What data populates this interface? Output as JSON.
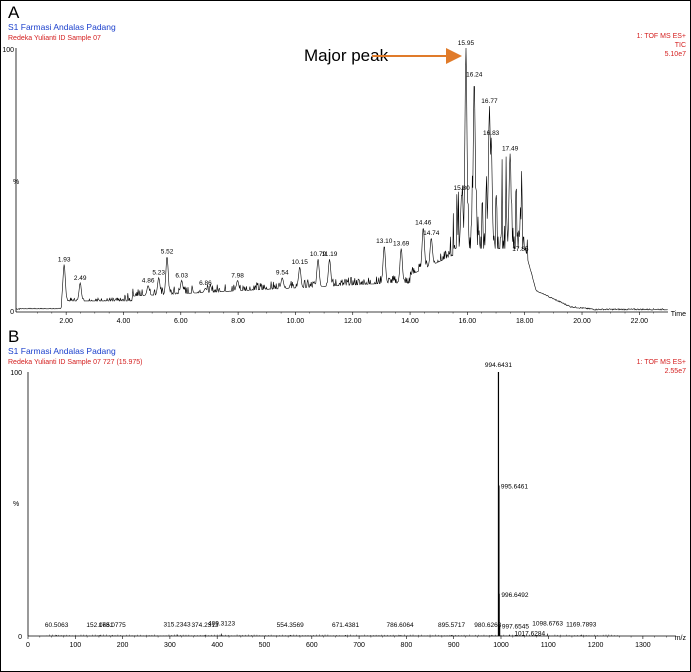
{
  "figure": {
    "panel_a_label": "A",
    "panel_b_label": "B",
    "annotation": "Major peak"
  },
  "chart_data": [
    {
      "type": "line",
      "panel": "A",
      "header_left_1": "S1 Farmasi Andalas Padang",
      "header_left_2": "Redeka Yulianti ID Sample 07",
      "header_right_1": "1: TOF MS ES+",
      "header_right_2": "TIC",
      "header_right_3": "5.10e7",
      "y_label": "%",
      "x_label": "Time",
      "y_ticks": [
        "0",
        "100"
      ],
      "x_ticks": [
        "2.00",
        "4.00",
        "6.00",
        "8.00",
        "10.00",
        "12.00",
        "14.00",
        "16.00",
        "18.00",
        "20.00",
        "22.00"
      ],
      "xlim": [
        0.25,
        23.0
      ],
      "ylim": [
        0,
        100
      ],
      "peaks": [
        {
          "x": 1.93,
          "y": 18,
          "label": "1.93"
        },
        {
          "x": 2.49,
          "y": 11,
          "label": "2.49"
        },
        {
          "x": 4.86,
          "y": 10,
          "label": "4.86"
        },
        {
          "x": 5.23,
          "y": 13,
          "label": "5.23"
        },
        {
          "x": 5.52,
          "y": 21,
          "label": "5.52"
        },
        {
          "x": 6.03,
          "y": 12,
          "label": "6.03"
        },
        {
          "x": 6.86,
          "y": 9,
          "label": "6.86"
        },
        {
          "x": 7.98,
          "y": 12,
          "label": "7.98"
        },
        {
          "x": 9.54,
          "y": 13,
          "label": "9.54"
        },
        {
          "x": 10.15,
          "y": 17,
          "label": "10.15"
        },
        {
          "x": 10.79,
          "y": 20,
          "label": "10.79"
        },
        {
          "x": 11.19,
          "y": 20,
          "label": "11.19"
        },
        {
          "x": 13.1,
          "y": 25,
          "label": "13.10"
        },
        {
          "x": 13.69,
          "y": 24,
          "label": "13.69"
        },
        {
          "x": 14.46,
          "y": 32,
          "label": "14.46"
        },
        {
          "x": 14.74,
          "y": 28,
          "label": "14.74"
        },
        {
          "x": 15.8,
          "y": 45,
          "label": "15.80"
        },
        {
          "x": 15.95,
          "y": 100,
          "label": "15.95"
        },
        {
          "x": 16.24,
          "y": 88,
          "label": "16.24"
        },
        {
          "x": 16.77,
          "y": 78,
          "label": "16.77"
        },
        {
          "x": 16.83,
          "y": 66,
          "label": "16.83"
        },
        {
          "x": 17.49,
          "y": 60,
          "label": "17.49"
        },
        {
          "x": 17.85,
          "y": 22,
          "label": "17.85"
        }
      ]
    },
    {
      "type": "bar",
      "panel": "B",
      "header_left_1": "S1 Farmasi Andalas Padang",
      "header_left_2": "Redeka Yulianti ID Sample 07 727 (15.975)",
      "header_right_1": "1: TOF MS ES+",
      "header_right_2": "2.55e7",
      "y_label": "%",
      "x_label": "m/z",
      "y_ticks": [
        "0",
        "100"
      ],
      "x_ticks": [
        "0",
        "100",
        "200",
        "300",
        "400",
        "500",
        "600",
        "700",
        "800",
        "900",
        "1000",
        "1100",
        "1200",
        "1300"
      ],
      "xlim": [
        0,
        1370
      ],
      "ylim": [
        0,
        100
      ],
      "peaks": [
        {
          "x": 60.5063,
          "y": 0.4,
          "label": "60.5063"
        },
        {
          "x": 152.0651,
          "y": 0.4,
          "label": "152.0651"
        },
        {
          "x": 178.0775,
          "y": 0.4,
          "label": "178.0775"
        },
        {
          "x": 315.2343,
          "y": 0.6,
          "label": "315.2343"
        },
        {
          "x": 374.2313,
          "y": 0.4,
          "label": "374.2313"
        },
        {
          "x": 409.3123,
          "y": 0.9,
          "label": "409.3123"
        },
        {
          "x": 554.3569,
          "y": 0.4,
          "label": "554.3569"
        },
        {
          "x": 671.4381,
          "y": 0.4,
          "label": "671.4381"
        },
        {
          "x": 786.6064,
          "y": 0.4,
          "label": "786.6064"
        },
        {
          "x": 895.5717,
          "y": 0.4,
          "label": "895.5717"
        },
        {
          "x": 980.6263,
          "y": 0.4,
          "label": "980.6263"
        },
        {
          "x": 994.6431,
          "y": 100,
          "label": "994.6431"
        },
        {
          "x": 995.6461,
          "y": 57,
          "label": "995.6461"
        },
        {
          "x": 996.6492,
          "y": 16,
          "label": "996.6492"
        },
        {
          "x": 997.6545,
          "y": 4,
          "label": "997.6545"
        },
        {
          "x": 1017.6284,
          "y": 0.5,
          "label": "1017.6284"
        },
        {
          "x": 1098.6763,
          "y": 0.9,
          "label": "1098.6763"
        },
        {
          "x": 1169.7893,
          "y": 0.5,
          "label": "1169.7893"
        }
      ]
    }
  ]
}
